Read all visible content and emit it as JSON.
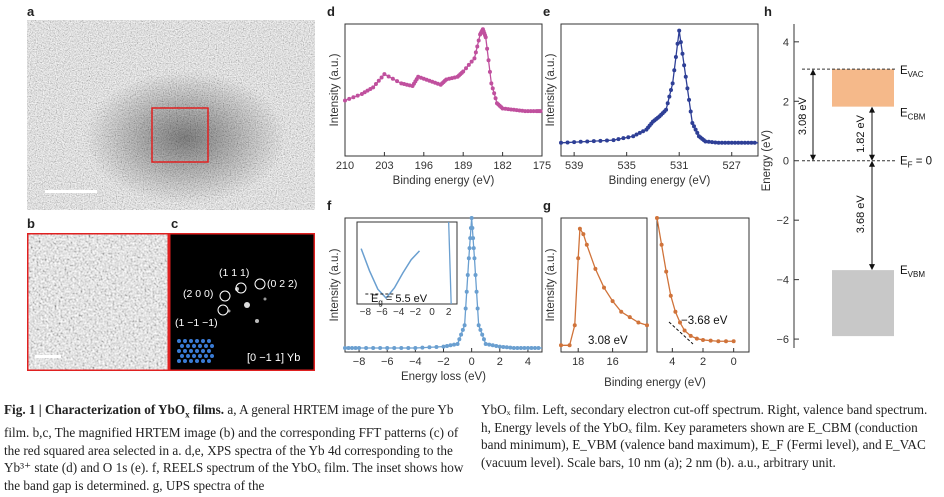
{
  "panels": {
    "a": {
      "letter": "a"
    },
    "b": {
      "letter": "b"
    },
    "c": {
      "letter": "c",
      "fft_labels": [
        "(1 1 1)",
        "(2 0 0)",
        "(0 2 2)",
        "(1 −1 −1)"
      ],
      "zone_axis": "[0 −1 1] Yb"
    },
    "d": {
      "letter": "d"
    },
    "e": {
      "letter": "e"
    },
    "f": {
      "letter": "f"
    },
    "g": {
      "letter": "g"
    },
    "h": {
      "letter": "h"
    }
  },
  "chart_data": [
    {
      "id": "d",
      "type": "line",
      "title": "",
      "xlabel": "Binding energy (eV)",
      "ylabel": "Intensity (a.u.)",
      "xlim": [
        210,
        175
      ],
      "x_ticks": [
        "210",
        "203",
        "196",
        "189",
        "182",
        "175"
      ],
      "color": "#c0509e",
      "series": [
        {
          "x": [
            210,
            207,
            205,
            203,
            200,
            198,
            197,
            195,
            193,
            192,
            190,
            189,
            187,
            186,
            185.5,
            185,
            184,
            183,
            182,
            180,
            178,
            176,
            175
          ],
          "y": [
            0.42,
            0.47,
            0.52,
            0.62,
            0.55,
            0.53,
            0.6,
            0.57,
            0.54,
            0.58,
            0.6,
            0.64,
            0.74,
            0.92,
            0.96,
            0.9,
            0.55,
            0.4,
            0.36,
            0.35,
            0.34,
            0.34,
            0.34
          ]
        }
      ]
    },
    {
      "id": "e",
      "type": "line",
      "title": "",
      "xlabel": "Binding energy (eV)",
      "ylabel": "Intensity (a.u.)",
      "xlim": [
        540,
        525
      ],
      "x_ticks": [
        "539",
        "535",
        "531",
        "527"
      ],
      "color": "#2e3f96",
      "series": [
        {
          "x": [
            540,
            538,
            536,
            534.5,
            533.5,
            533,
            532.5,
            532,
            531.5,
            531,
            530.5,
            530,
            529.5,
            529,
            528,
            527,
            526,
            525
          ],
          "y": [
            0.1,
            0.11,
            0.12,
            0.15,
            0.2,
            0.26,
            0.3,
            0.35,
            0.55,
            0.95,
            0.6,
            0.25,
            0.15,
            0.11,
            0.1,
            0.1,
            0.1,
            0.1
          ]
        }
      ]
    },
    {
      "id": "f",
      "type": "line",
      "title": "",
      "xlabel": "Energy loss (eV)",
      "ylabel": "Intensity (a.u.)",
      "xlim": [
        -9,
        5
      ],
      "x_ticks": [
        "−8",
        "−6",
        "−4",
        "−2",
        "0",
        "2",
        "4"
      ],
      "color": "#6a9fd0",
      "series": [
        {
          "x": [
            -9,
            -8,
            -6,
            -4,
            -2,
            -1,
            -0.5,
            -0.2,
            0,
            0.2,
            0.5,
            1,
            2,
            3,
            4,
            5
          ],
          "y": [
            0.03,
            0.03,
            0.03,
            0.03,
            0.04,
            0.06,
            0.2,
            0.7,
            1.0,
            0.7,
            0.2,
            0.06,
            0.04,
            0.03,
            0.03,
            0.03
          ]
        }
      ],
      "inset": {
        "x_ticks": [
          "−8",
          "−6",
          "−4",
          "−2",
          "0",
          "2"
        ],
        "annotation": "E",
        "annotation_sub": "g",
        "annotation_value": " = 5.5 eV"
      }
    },
    {
      "id": "g-left",
      "type": "line",
      "title": "",
      "xlabel": "Binding energy (eV)",
      "ylabel": "Intensity (a.u.)",
      "xlim": [
        19,
        14
      ],
      "x_ticks": [
        "18",
        "16"
      ],
      "color": "#d0733a",
      "annotation": "3.08 eV",
      "series": [
        {
          "x": [
            19,
            18.5,
            18.2,
            18.0,
            17.9,
            17.7,
            17.5,
            17.0,
            16.5,
            16.0,
            15.5,
            15.0,
            14.5,
            14
          ],
          "y": [
            0.05,
            0.05,
            0.2,
            0.7,
            0.92,
            0.88,
            0.8,
            0.62,
            0.48,
            0.38,
            0.3,
            0.26,
            0.22,
            0.2
          ]
        }
      ]
    },
    {
      "id": "g-right",
      "type": "line",
      "title": "",
      "xlabel": "",
      "ylabel": "",
      "xlim": [
        5,
        -1
      ],
      "x_ticks": [
        "4",
        "2",
        "0"
      ],
      "color": "#d0733a",
      "annotation": "−3.68 eV",
      "series": [
        {
          "x": [
            5,
            4.7,
            4.4,
            4.1,
            3.8,
            3.5,
            3.2,
            2.8,
            2.4,
            2.0,
            1.5,
            1.0,
            0.5,
            0
          ],
          "y": [
            1.0,
            0.8,
            0.6,
            0.42,
            0.3,
            0.22,
            0.16,
            0.12,
            0.1,
            0.09,
            0.085,
            0.08,
            0.08,
            0.08
          ]
        }
      ]
    },
    {
      "id": "h",
      "type": "diagram",
      "title": "",
      "ylabel": "Energy (eV)",
      "ylim": [
        -6.3,
        4.6
      ],
      "y_ticks": [
        "4",
        "2",
        "0",
        "−2",
        "−4",
        "−6"
      ],
      "levels": {
        "E_VAC": 3.08,
        "E_CBM": 1.82,
        "E_F": 0,
        "E_VBM": -3.68
      },
      "cbm_band_bottom": 1.82,
      "vbm_band_bottom": -5.9,
      "labels": {
        "vac": "E",
        "vac_sub": "VAC",
        "cbm": "E",
        "cbm_sub": "CBM",
        "fermi": "E",
        "fermi_sub": "F",
        "fermi_tail": " = 0",
        "vbm": "E",
        "vbm_sub": "VBM"
      },
      "arrows": [
        "3.08 eV",
        "1.82 eV",
        "3.68 eV"
      ],
      "colors": {
        "cbm": "#f5b98a",
        "vbm": "#c8c8c8"
      }
    }
  ],
  "caption": {
    "lead": "Fig. 1 | Characterization of YbO",
    "lead_sub": "x",
    "lead_tail": " films.",
    "col1": "a, A general HRTEM image of the pure Yb film. b,c, The magnified HRTEM image (b) and the corresponding FFT patterns (c) of the red squared area selected in a. d,e, XPS spectra of the Yb 4d corresponding to the Yb³⁺ state (d) and O 1s (e). f, REELS spectrum of the YbOₓ film. The inset shows how the band gap is determined. g, UPS spectra of the",
    "col2": "YbOₓ film. Left, secondary electron cut-off spectrum. Right, valence band spectrum. h, Energy levels of the YbOₓ film. Key parameters shown are E_CBM (conduction band minimum), E_VBM (valence band maximum), E_F (Fermi level), and E_VAC (vacuum level). Scale bars, 10 nm (a); 2 nm (b). a.u., arbitrary unit."
  }
}
